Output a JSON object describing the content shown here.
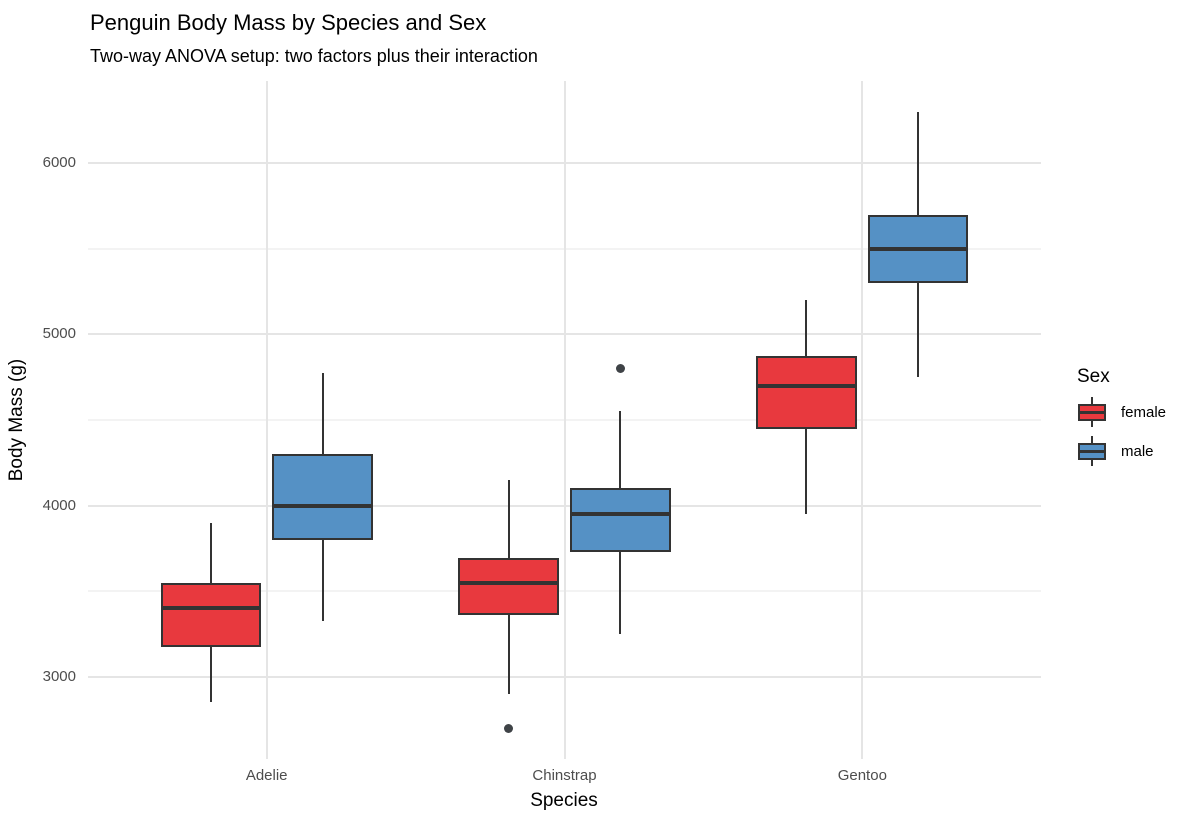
{
  "chart_data": {
    "type": "boxplot",
    "title": "Penguin Body Mass by Species and Sex",
    "subtitle": "Two-way ANOVA setup: two factors plus their interaction",
    "xlabel": "Species",
    "ylabel": "Body Mass (g)",
    "categories": [
      "Adelie",
      "Chinstrap",
      "Gentoo"
    ],
    "y_axis": {
      "major_ticks": [
        3000,
        4000,
        5000,
        6000
      ],
      "minor_gridlines": [
        3500,
        4500,
        5500
      ],
      "ylim": [
        2520,
        6480
      ]
    },
    "grid": true,
    "legend_position": "right",
    "legend": {
      "title": "Sex",
      "entries": [
        {
          "label": "female",
          "color": "#E8393E"
        },
        {
          "label": "male",
          "color": "#5591C5"
        }
      ]
    },
    "series": [
      {
        "name": "female",
        "color": "#E8393E",
        "boxes": [
          {
            "category": "Adelie",
            "whisker_low": 2850,
            "q1": 3175,
            "median": 3400,
            "q3": 3550,
            "whisker_high": 3900,
            "outliers": []
          },
          {
            "category": "Chinstrap",
            "whisker_low": 2900,
            "q1": 3363,
            "median": 3550,
            "q3": 3694,
            "whisker_high": 4150,
            "outliers": [
              2700
            ]
          },
          {
            "category": "Gentoo",
            "whisker_low": 3950,
            "q1": 4450,
            "median": 4700,
            "q3": 4875,
            "whisker_high": 5200,
            "outliers": []
          }
        ]
      },
      {
        "name": "male",
        "color": "#5591C5",
        "boxes": [
          {
            "category": "Adelie",
            "whisker_low": 3325,
            "q1": 3800,
            "median": 4000,
            "q3": 4300,
            "whisker_high": 4775,
            "outliers": []
          },
          {
            "category": "Chinstrap",
            "whisker_low": 3250,
            "q1": 3731,
            "median": 3950,
            "q3": 4100,
            "whisker_high": 4550,
            "outliers": [
              4800
            ]
          },
          {
            "category": "Gentoo",
            "whisker_low": 4750,
            "q1": 5300,
            "median": 5500,
            "q3": 5700,
            "whisker_high": 6300,
            "outliers": []
          }
        ]
      }
    ],
    "style": {
      "box_border_color": "#333333",
      "median_color": "#333333",
      "whisker_color": "#333333",
      "outlier_color": "#3F4347",
      "grid_major_color": "#E5E5E5",
      "grid_minor_color": "#F3F3F3",
      "tick_label_color": "#4D4D4D",
      "text_color": "#000000",
      "background": "#FFFFFF"
    }
  }
}
